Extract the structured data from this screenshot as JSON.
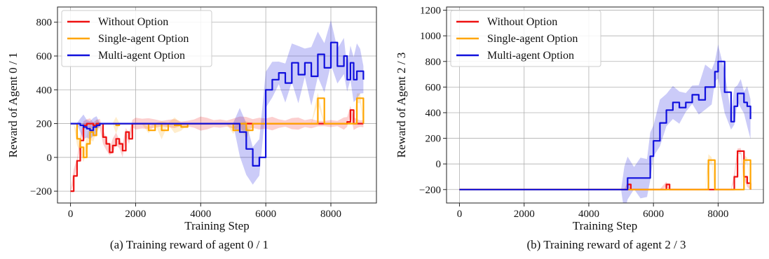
{
  "series_colors": {
    "Without Option": "#ee1111",
    "Single-agent Option": "#ffa500",
    "Multi-agent Option": "#1010dd"
  },
  "chart_data": [
    {
      "type": "line",
      "caption": "(a) Training reward of agent 0 / 1",
      "xlabel": "Training Step",
      "ylabel": "Reward of Agent 0 / 1",
      "xlim": [
        -400,
        9400
      ],
      "ylim": [
        -270,
        890
      ],
      "xticks": [
        0,
        2000,
        4000,
        6000,
        8000
      ],
      "yticks": [
        -200,
        0,
        200,
        400,
        600,
        800
      ],
      "grid": true,
      "legend": "top-left",
      "series": [
        {
          "name": "Without Option",
          "x": [
            0,
            100,
            200,
            300,
            400,
            500,
            600,
            700,
            800,
            900,
            1000,
            1100,
            1200,
            1300,
            1400,
            1500,
            1600,
            1700,
            1800,
            1900,
            2000,
            2200,
            2400,
            2600,
            2800,
            3000,
            3200,
            3400,
            3600,
            3800,
            4000,
            4200,
            4400,
            4600,
            4800,
            5000,
            5200,
            5400,
            5600,
            5800,
            6000,
            6200,
            6400,
            6600,
            6800,
            7000,
            7200,
            7400,
            7600,
            7800,
            8000,
            8200,
            8400,
            8500,
            8600,
            8700,
            8800,
            8900,
            9000
          ],
          "y": [
            -200,
            -110,
            -20,
            100,
            190,
            200,
            200,
            190,
            200,
            200,
            120,
            80,
            30,
            70,
            110,
            80,
            40,
            150,
            110,
            200,
            200,
            200,
            200,
            200,
            200,
            200,
            200,
            200,
            200,
            200,
            200,
            200,
            200,
            200,
            200,
            200,
            200,
            200,
            200,
            200,
            200,
            200,
            200,
            200,
            200,
            200,
            200,
            200,
            200,
            200,
            200,
            200,
            200,
            210,
            280,
            200,
            200,
            200,
            200
          ]
        },
        {
          "name": "Single-agent Option",
          "x": [
            0,
            100,
            200,
            300,
            400,
            500,
            600,
            700,
            800,
            900,
            1000,
            1100,
            1200,
            1300,
            1400,
            1500,
            1600,
            1700,
            1800,
            1900,
            2000,
            2200,
            2400,
            2600,
            2800,
            3000,
            3200,
            3400,
            3600,
            3800,
            4000,
            4200,
            4400,
            4600,
            4800,
            5000,
            5200,
            5400,
            5600,
            5800,
            6000,
            6200,
            6400,
            6600,
            6800,
            7000,
            7200,
            7400,
            7600,
            7800,
            8000,
            8200,
            8400,
            8500,
            8600,
            8700,
            8800,
            8900,
            9000
          ],
          "y": [
            200,
            200,
            110,
            60,
            0,
            80,
            150,
            130,
            190,
            200,
            200,
            200,
            200,
            200,
            190,
            200,
            200,
            200,
            200,
            200,
            200,
            200,
            160,
            200,
            160,
            200,
            190,
            180,
            200,
            200,
            200,
            200,
            200,
            200,
            200,
            160,
            200,
            160,
            200,
            200,
            200,
            200,
            200,
            200,
            200,
            200,
            200,
            200,
            350,
            200,
            200,
            200,
            200,
            200,
            200,
            200,
            350,
            350,
            200
          ]
        },
        {
          "name": "Multi-agent Option",
          "x": [
            0,
            100,
            200,
            300,
            400,
            500,
            600,
            700,
            800,
            900,
            1000,
            1100,
            1200,
            1300,
            1400,
            1500,
            1600,
            1700,
            1800,
            1900,
            2000,
            2200,
            2400,
            2600,
            2800,
            3000,
            3200,
            3400,
            3600,
            3800,
            4000,
            4200,
            4400,
            4600,
            4800,
            5000,
            5200,
            5400,
            5600,
            5800,
            6000,
            6200,
            6400,
            6600,
            6800,
            7000,
            7200,
            7400,
            7600,
            7800,
            8000,
            8200,
            8400,
            8500,
            8600,
            8700,
            8800,
            8900,
            9000
          ],
          "y": [
            200,
            200,
            200,
            190,
            180,
            170,
            160,
            180,
            190,
            200,
            200,
            200,
            200,
            200,
            200,
            200,
            200,
            200,
            200,
            200,
            200,
            200,
            200,
            200,
            200,
            200,
            200,
            200,
            200,
            200,
            200,
            200,
            200,
            200,
            200,
            200,
            150,
            50,
            -50,
            0,
            400,
            460,
            500,
            440,
            560,
            490,
            560,
            480,
            610,
            530,
            680,
            540,
            600,
            460,
            560,
            460,
            510,
            510,
            460
          ]
        }
      ]
    },
    {
      "type": "line",
      "caption": "(b) Training reward of agent 2 / 3",
      "xlabel": "Training Step",
      "ylabel": "Reward of Agent 2 / 3",
      "xlim": [
        -400,
        9400
      ],
      "ylim": [
        -305,
        1225
      ],
      "xticks": [
        0,
        2000,
        4000,
        6000,
        8000
      ],
      "yticks": [
        -200,
        0,
        200,
        400,
        600,
        800,
        1000,
        1200
      ],
      "grid": true,
      "legend": "top-left",
      "series": [
        {
          "name": "Without Option",
          "x": [
            0,
            500,
            1000,
            1500,
            2000,
            2500,
            3000,
            3500,
            4000,
            4500,
            5000,
            5100,
            5200,
            5300,
            5400,
            5600,
            5800,
            6000,
            6200,
            6400,
            6500,
            6600,
            6800,
            7000,
            7200,
            7400,
            7600,
            7800,
            8000,
            8200,
            8400,
            8500,
            8600,
            8700,
            8800,
            8900,
            9000
          ],
          "y": [
            -200,
            -200,
            -200,
            -200,
            -200,
            -200,
            -200,
            -200,
            -200,
            -200,
            -200,
            -200,
            -160,
            -200,
            -200,
            -200,
            -200,
            -200,
            -200,
            -160,
            -200,
            -200,
            -200,
            -200,
            -200,
            -200,
            -200,
            -200,
            -200,
            -200,
            -200,
            -100,
            100,
            100,
            -100,
            -150,
            -200
          ]
        },
        {
          "name": "Single-agent Option",
          "x": [
            0,
            500,
            1000,
            1500,
            2000,
            2500,
            3000,
            3500,
            4000,
            4500,
            5000,
            5100,
            5200,
            5300,
            5400,
            5600,
            5800,
            6000,
            6200,
            6400,
            6600,
            6800,
            7000,
            7200,
            7400,
            7600,
            7700,
            7800,
            7900,
            8000,
            8200,
            8400,
            8600,
            8700,
            8800,
            8900,
            9000
          ],
          "y": [
            -200,
            -200,
            -200,
            -200,
            -200,
            -200,
            -200,
            -200,
            -200,
            -200,
            -200,
            -200,
            -200,
            -200,
            -200,
            -200,
            -200,
            -200,
            -200,
            -200,
            -200,
            -200,
            -200,
            -200,
            -200,
            -200,
            30,
            30,
            -200,
            -200,
            -200,
            -200,
            -200,
            -200,
            30,
            30,
            -200
          ]
        },
        {
          "name": "Multi-agent Option",
          "x": [
            0,
            500,
            1000,
            1500,
            2000,
            2500,
            3000,
            3500,
            4000,
            4500,
            5000,
            5100,
            5200,
            5400,
            5600,
            5800,
            5900,
            6000,
            6200,
            6400,
            6600,
            6800,
            7000,
            7200,
            7400,
            7600,
            7800,
            7900,
            8000,
            8200,
            8400,
            8500,
            8600,
            8700,
            8800,
            8900,
            9000
          ],
          "y": [
            -200,
            -200,
            -200,
            -200,
            -200,
            -200,
            -200,
            -200,
            -200,
            -200,
            -200,
            -200,
            -110,
            -110,
            -110,
            -110,
            60,
            180,
            320,
            420,
            480,
            440,
            480,
            540,
            500,
            600,
            600,
            720,
            800,
            560,
            330,
            450,
            550,
            550,
            480,
            450,
            350
          ]
        }
      ]
    }
  ]
}
